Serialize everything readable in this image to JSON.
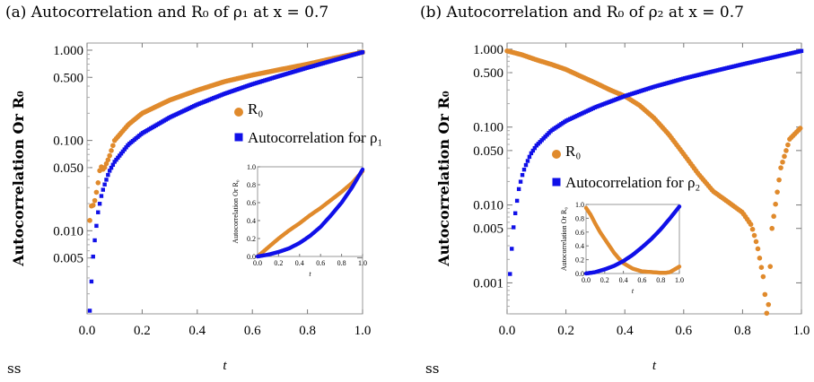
{
  "panels": [
    {
      "title": "(a) Autocorrelation and R₀ of ρ₁ at x = 0.7",
      "footer": "ss",
      "ylabel": "Autocorrelation Or R₀",
      "xlabel": "t",
      "legend": [
        "R₀",
        "Autocorrelation for ρ₁"
      ]
    },
    {
      "title": "(b) Autocorrelation and R₀ of ρ₂ at x = 0.7",
      "footer": "ss",
      "ylabel": "Autocorrelation Or R₀",
      "xlabel": "t",
      "legend": [
        "R₀",
        "Autocorrelation for ρ₂"
      ]
    }
  ],
  "chart_data": [
    {
      "type": "scatter",
      "title": "(a) Autocorrelation and R₀ of ρ₁ at x = 0.7",
      "xlabel": "t",
      "ylabel": "Autocorrelation Or R₀",
      "yscale": "log",
      "xlim": [
        0,
        1
      ],
      "ylim": [
        0.0012,
        1.2
      ],
      "xticks": [
        "0.0",
        "0.2",
        "0.4",
        "0.6",
        "0.8",
        "1.0"
      ],
      "yticks": [
        "0.005",
        "0.010",
        "0.050",
        "0.100",
        "0.500",
        "1.000"
      ],
      "legend_position": "middle-right",
      "colors": {
        "R0": "#e08a2c",
        "autocorrelation": "#1010e8"
      },
      "series": [
        {
          "name": "R₀",
          "color": "#e08a2c",
          "x": [
            0.01,
            0.015,
            0.02,
            0.025,
            0.03,
            0.035,
            0.04,
            0.045,
            0.05,
            0.06,
            0.08,
            0.1,
            0.15,
            0.2,
            0.3,
            0.4,
            0.5,
            0.6,
            0.7,
            0.8,
            0.9,
            1.0
          ],
          "y": [
            0.013,
            0.019,
            0.018,
            0.021,
            0.022,
            0.028,
            0.034,
            0.045,
            0.052,
            0.047,
            0.065,
            0.1,
            0.15,
            0.2,
            0.28,
            0.36,
            0.45,
            0.53,
            0.61,
            0.7,
            0.82,
            0.95
          ]
        },
        {
          "name": "Autocorrelation for ρ₁",
          "color": "#1010e8",
          "x": [
            0.01,
            0.02,
            0.03,
            0.04,
            0.05,
            0.06,
            0.08,
            0.1,
            0.15,
            0.2,
            0.3,
            0.4,
            0.5,
            0.6,
            0.7,
            0.8,
            0.9,
            1.0
          ],
          "y": [
            0.0013,
            0.0045,
            0.009,
            0.016,
            0.023,
            0.03,
            0.045,
            0.058,
            0.09,
            0.12,
            0.18,
            0.25,
            0.33,
            0.42,
            0.52,
            0.64,
            0.78,
            0.95
          ]
        }
      ]
    },
    {
      "type": "scatter",
      "title": "(b) Autocorrelation and R₀ of ρ₂ at x = 0.7",
      "xlabel": "t",
      "ylabel": "Autocorrelation Or R₀",
      "yscale": "log",
      "xlim": [
        0,
        1
      ],
      "ylim": [
        0.0004,
        1.2
      ],
      "xticks": [
        "0.0",
        "0.2",
        "0.4",
        "0.6",
        "0.8",
        "1.0"
      ],
      "yticks": [
        "0.001",
        "0.005",
        "0.010",
        "0.050",
        "0.100",
        "0.500",
        "1.000"
      ],
      "legend_position": "middle-left",
      "colors": {
        "R0": "#e08a2c",
        "autocorrelation": "#1010e8"
      },
      "series": [
        {
          "name": "R₀",
          "color": "#e08a2c",
          "x": [
            0.0,
            0.05,
            0.1,
            0.15,
            0.2,
            0.25,
            0.3,
            0.35,
            0.4,
            0.45,
            0.5,
            0.55,
            0.6,
            0.65,
            0.7,
            0.75,
            0.8,
            0.83,
            0.85,
            0.87,
            0.88,
            0.885,
            0.9,
            0.93,
            0.96,
            1.0
          ],
          "y": [
            0.95,
            0.85,
            0.73,
            0.64,
            0.55,
            0.45,
            0.37,
            0.3,
            0.25,
            0.19,
            0.13,
            0.08,
            0.045,
            0.025,
            0.015,
            0.011,
            0.008,
            0.0055,
            0.003,
            0.0012,
            0.0005,
            0.0003,
            0.005,
            0.03,
            0.07,
            0.1
          ]
        },
        {
          "name": "Autocorrelation for ρ₂",
          "color": "#1010e8",
          "x": [
            0.01,
            0.02,
            0.03,
            0.04,
            0.05,
            0.06,
            0.08,
            0.1,
            0.15,
            0.2,
            0.3,
            0.4,
            0.5,
            0.6,
            0.7,
            0.8,
            0.9,
            1.0
          ],
          "y": [
            0.0013,
            0.0045,
            0.009,
            0.016,
            0.023,
            0.03,
            0.045,
            0.058,
            0.09,
            0.12,
            0.18,
            0.25,
            0.33,
            0.42,
            0.52,
            0.64,
            0.78,
            0.95
          ]
        }
      ]
    }
  ],
  "insets": [
    {
      "xlabel": "t",
      "ylabel": "Autocorrelation Or R₀",
      "xlim": [
        0,
        1
      ],
      "ylim": [
        0,
        1
      ],
      "xticks": [
        "0.0",
        "0.2",
        "0.4",
        "0.6",
        "0.8",
        "1.0"
      ],
      "yticks": [
        "0.0",
        "0.2",
        "0.4",
        "0.6",
        "0.8",
        "1.0"
      ],
      "series": [
        {
          "name": "R₀",
          "color": "#e08a2c",
          "x": [
            0,
            0.05,
            0.1,
            0.2,
            0.3,
            0.4,
            0.5,
            0.6,
            0.7,
            0.8,
            0.9,
            1.0
          ],
          "y": [
            0,
            0.05,
            0.1,
            0.2,
            0.29,
            0.37,
            0.46,
            0.54,
            0.63,
            0.72,
            0.82,
            0.95
          ]
        },
        {
          "name": "Autocorrelation",
          "color": "#1010e8",
          "x": [
            0,
            0.05,
            0.1,
            0.2,
            0.3,
            0.4,
            0.5,
            0.6,
            0.7,
            0.8,
            0.9,
            1.0
          ],
          "y": [
            0,
            0.01,
            0.02,
            0.05,
            0.09,
            0.15,
            0.23,
            0.33,
            0.46,
            0.6,
            0.77,
            0.97
          ]
        }
      ]
    },
    {
      "xlabel": "t",
      "ylabel": "Autocorrelation Or R₀",
      "xlim": [
        0,
        1
      ],
      "ylim": [
        0,
        1
      ],
      "xticks": [
        "0.0",
        "0.2",
        "0.4",
        "0.6",
        "0.8",
        "1.0"
      ],
      "yticks": [
        "0.0",
        "0.2",
        "0.4",
        "0.6",
        "0.8",
        "1.0"
      ],
      "series": [
        {
          "name": "R₀",
          "color": "#e08a2c",
          "x": [
            0,
            0.05,
            0.1,
            0.15,
            0.2,
            0.25,
            0.3,
            0.35,
            0.4,
            0.5,
            0.6,
            0.7,
            0.8,
            0.85,
            0.9,
            0.95,
            1.0
          ],
          "y": [
            0.95,
            0.85,
            0.72,
            0.6,
            0.5,
            0.4,
            0.3,
            0.22,
            0.15,
            0.07,
            0.03,
            0.02,
            0.01,
            0.01,
            0.02,
            0.06,
            0.1
          ]
        },
        {
          "name": "Autocorrelation",
          "color": "#1010e8",
          "x": [
            0,
            0.05,
            0.1,
            0.2,
            0.3,
            0.4,
            0.5,
            0.6,
            0.7,
            0.8,
            0.9,
            1.0
          ],
          "y": [
            0,
            0.01,
            0.02,
            0.06,
            0.11,
            0.18,
            0.27,
            0.38,
            0.5,
            0.64,
            0.8,
            0.97
          ]
        }
      ]
    }
  ]
}
